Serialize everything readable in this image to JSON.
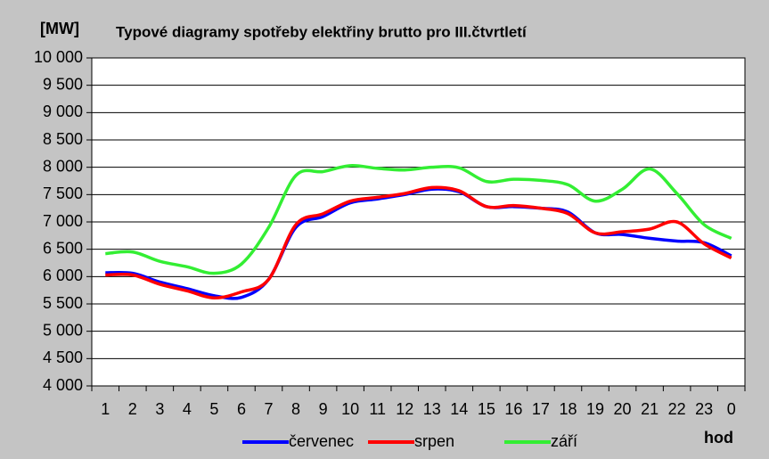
{
  "chart_data": {
    "type": "line",
    "title": "Typové diagramy spotřeby elektřiny brutto pro III.čtvrtletí",
    "y_label": "[MW]",
    "x_label": "hod",
    "categories": [
      "1",
      "2",
      "3",
      "4",
      "5",
      "6",
      "7",
      "8",
      "9",
      "10",
      "11",
      "12",
      "13",
      "14",
      "15",
      "16",
      "17",
      "18",
      "19",
      "20",
      "21",
      "22",
      "23",
      "0"
    ],
    "series": [
      {
        "name": "červenec",
        "color": "#0000ff",
        "values": [
          6070,
          6060,
          5900,
          5780,
          5650,
          5620,
          5950,
          6900,
          7100,
          7350,
          7420,
          7500,
          7600,
          7550,
          7280,
          7280,
          7250,
          7180,
          6800,
          6770,
          6700,
          6650,
          6620,
          6380
        ]
      },
      {
        "name": "srpen",
        "color": "#ff0000",
        "values": [
          6030,
          6030,
          5860,
          5740,
          5610,
          5720,
          5950,
          6950,
          7150,
          7380,
          7450,
          7520,
          7630,
          7570,
          7280,
          7300,
          7250,
          7150,
          6800,
          6820,
          6870,
          7000,
          6600,
          6340
        ]
      },
      {
        "name": "září",
        "color": "#33ee33",
        "values": [
          6420,
          6450,
          6280,
          6180,
          6060,
          6230,
          6900,
          7850,
          7920,
          8030,
          7980,
          7950,
          8000,
          7990,
          7740,
          7780,
          7760,
          7680,
          7380,
          7600,
          7970,
          7520,
          6950,
          6700
        ]
      }
    ],
    "ylim": [
      4000,
      10000
    ],
    "yticks": [
      {
        "value": 4000,
        "label": "4 000"
      },
      {
        "value": 4500,
        "label": "4 500"
      },
      {
        "value": 5000,
        "label": "5 000"
      },
      {
        "value": 5500,
        "label": "5 500"
      },
      {
        "value": 6000,
        "label": "6 000"
      },
      {
        "value": 6500,
        "label": "6 500"
      },
      {
        "value": 7000,
        "label": "7 000"
      },
      {
        "value": 7500,
        "label": "7 500"
      },
      {
        "value": 8000,
        "label": "8 000"
      },
      {
        "value": 8500,
        "label": "8 500"
      },
      {
        "value": 9000,
        "label": "9 000"
      },
      {
        "value": 9500,
        "label": "9 500"
      },
      {
        "value": 10000,
        "label": "10 000"
      }
    ],
    "grid": true,
    "legend": "bottom"
  }
}
